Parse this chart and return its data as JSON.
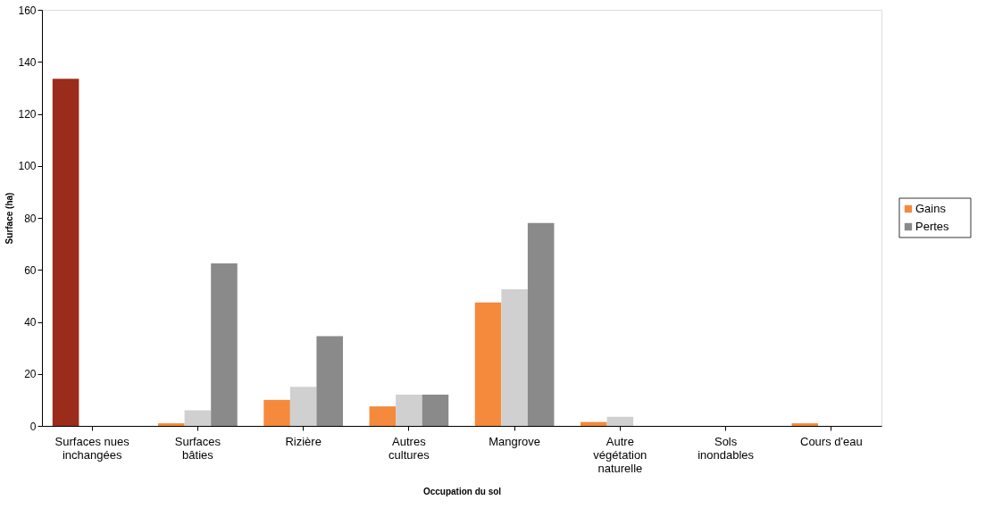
{
  "chart_data": {
    "type": "bar",
    "xlabel": "Occupation du sol",
    "ylabel": "Surface (ha)",
    "categories": [
      "Surfaces nues inchangées",
      "Surfaces bâties",
      "Rizière",
      "Autres cultures",
      "Mangrove",
      "Autre végétation naturelle",
      "Sols inondables",
      "Cours d'eau"
    ],
    "series": [
      {
        "name": "Gains",
        "color": "#f58a3c",
        "colors": [
          "#9b2b1b",
          "#f58a3c",
          "#f58a3c",
          "#f58a3c",
          "#f58a3c",
          "#f58a3c",
          "#f58a3c",
          "#f58a3c"
        ],
        "values": [
          133.5,
          1,
          10,
          7.5,
          47.5,
          1.5,
          0,
          1
        ]
      },
      {
        "color": "#d0d0d0",
        "values": [
          0,
          6,
          15,
          12,
          52.5,
          3.5,
          0,
          0
        ]
      },
      {
        "name": "Pertes",
        "color": "#8a8a8a",
        "values": [
          0,
          62.5,
          34.5,
          12,
          78,
          0,
          0,
          0
        ]
      }
    ],
    "ylim": [
      0,
      160
    ],
    "yticks": [
      0,
      20,
      40,
      60,
      80,
      100,
      120,
      140,
      160
    ],
    "grid": false,
    "legend": "right"
  }
}
